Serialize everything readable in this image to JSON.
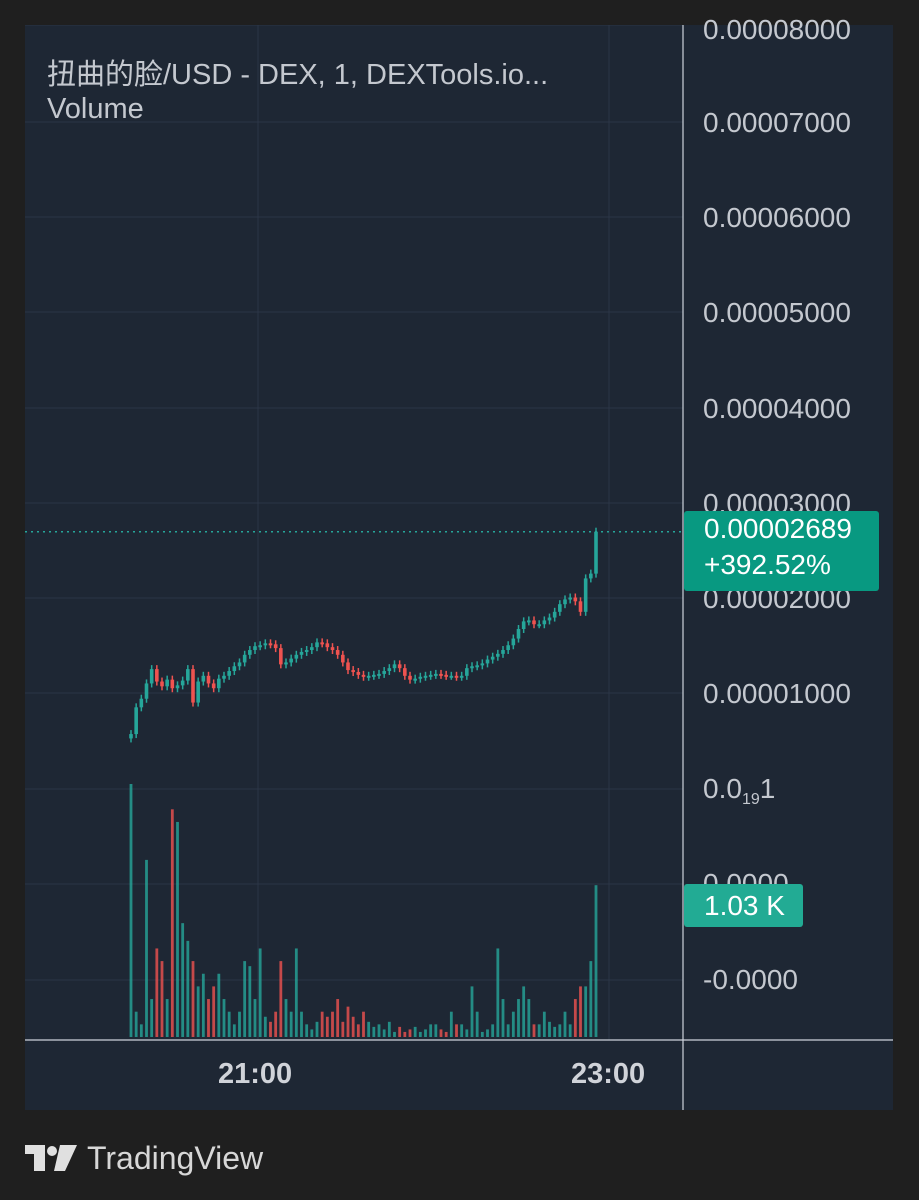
{
  "header": {
    "symbol_line": "扭曲的脸/USD - DEX, 1, DEXTools.io...",
    "indicator_label": "Volume"
  },
  "price_axis": {
    "top_clipped": "0.00008000",
    "l70": "0.00007000",
    "l60": "0.00006000",
    "l50": "0.00005000",
    "l40": "0.00004000",
    "l30": "0.00003000",
    "l20": "0.00002000",
    "l10": "0.00001000",
    "l0_main": "0.0",
    "l0_sub": "19",
    "l0_end": "1",
    "vol_zero": "0.0000",
    "vol_neg": "-0.0000"
  },
  "last_price": {
    "price": "0.00002689",
    "change": "+392.52%"
  },
  "volume_label": "1.03 K",
  "time_axis": {
    "t1": "21:00",
    "t2": "23:00"
  },
  "brand": {
    "name": "TradingView"
  },
  "colors": {
    "up": "#26a69a",
    "down": "#ef5350",
    "last_price_bg": "#089981",
    "volume_label_bg": "#22ab94",
    "background": "#1e2734",
    "grid": "#2b3646"
  },
  "chart_data": {
    "type": "candlestick",
    "title": "扭曲的脸/USD - DEX, 1, DEXTools.io...",
    "interval": "1",
    "x_ticks": [
      "21:00",
      "23:00"
    ],
    "y_unit": "USD",
    "ylim": [
      1e-06,
      8e-05
    ],
    "y_ticks": [
      1e-05,
      2e-05,
      3e-05,
      4e-05,
      5e-05,
      6e-05,
      7e-05,
      8e-05
    ],
    "last_price": 2.689e-05,
    "change_percent": 392.52,
    "last_volume": "1.03 K",
    "grid": true,
    "candles_close": [
      5.7e-06,
      8.5e-06,
      9.4e-06,
      1.1e-05,
      1.25e-05,
      1.12e-05,
      1.07e-05,
      1.14e-05,
      1.05e-05,
      1.08e-05,
      1.13e-05,
      1.25e-05,
      9e-06,
      1.12e-05,
      1.18e-05,
      1.1e-05,
      1.05e-05,
      1.15e-05,
      1.18e-05,
      1.23e-05,
      1.28e-05,
      1.32e-05,
      1.4e-05,
      1.45e-05,
      1.49e-05,
      1.5e-05,
      1.52e-05,
      1.51e-05,
      1.47e-05,
      1.3e-05,
      1.32e-05,
      1.36e-05,
      1.4e-05,
      1.43e-05,
      1.45e-05,
      1.48e-05,
      1.53e-05,
      1.52e-05,
      1.48e-05,
      1.45e-05,
      1.4e-05,
      1.32e-05,
      1.24e-05,
      1.22e-05,
      1.19e-05,
      1.17e-05,
      1.18e-05,
      1.19e-05,
      1.2e-05,
      1.23e-05,
      1.26e-05,
      1.3e-05,
      1.26e-05,
      1.18e-05,
      1.14e-05,
      1.15e-05,
      1.17e-05,
      1.18e-05,
      1.19e-05,
      1.2e-05,
      1.19e-05,
      1.18e-05,
      1.18e-05,
      1.17e-05,
      1.18e-05,
      1.26e-05,
      1.28e-05,
      1.29e-05,
      1.31e-05,
      1.35e-05,
      1.38e-05,
      1.41e-05,
      1.45e-05,
      1.5e-05,
      1.57e-05,
      1.67e-05,
      1.75e-05,
      1.76e-05,
      1.72e-05,
      1.72e-05,
      1.76e-05,
      1.79e-05,
      1.85e-05,
      1.93e-05,
      1.98e-05,
      2e-05,
      1.96e-05,
      1.85e-05,
      2.2e-05,
      2.25e-05,
      2.689e-05
    ],
    "volume_values": [
      1.0,
      0.1,
      0.05,
      0.7,
      0.15,
      0.35,
      0.3,
      0.15,
      0.9,
      0.85,
      0.45,
      0.38,
      0.3,
      0.2,
      0.25,
      0.15,
      0.2,
      0.25,
      0.15,
      0.1,
      0.05,
      0.1,
      0.3,
      0.28,
      0.15,
      0.35,
      0.08,
      0.06,
      0.1,
      0.3,
      0.15,
      0.1,
      0.35,
      0.1,
      0.05,
      0.03,
      0.06,
      0.1,
      0.08,
      0.1,
      0.15,
      0.06,
      0.12,
      0.08,
      0.05,
      0.1,
      0.06,
      0.04,
      0.05,
      0.03,
      0.06,
      0.02,
      0.04,
      0.02,
      0.03,
      0.04,
      0.02,
      0.03,
      0.05,
      0.05,
      0.03,
      0.02,
      0.1,
      0.05,
      0.05,
      0.03,
      0.2,
      0.1,
      0.02,
      0.03,
      0.05,
      0.35,
      0.15,
      0.05,
      0.1,
      0.15,
      0.2,
      0.15,
      0.05,
      0.05,
      0.1,
      0.06,
      0.04,
      0.05,
      0.1,
      0.05,
      0.15,
      0.2,
      0.2,
      0.3,
      0.6
    ]
  }
}
